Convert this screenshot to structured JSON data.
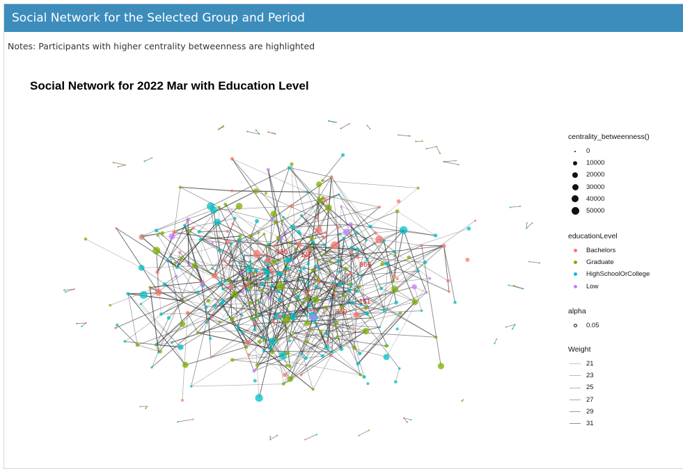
{
  "header": {
    "title": "Social Network for the Selected Group and Period"
  },
  "notes": "Notes: Participants with higher centrality betweenness are highlighted",
  "plot": {
    "title": "Social Network for 2022 Mar with Education Level"
  },
  "highlighted_labels": [
    "350",
    "145",
    "566",
    "161",
    "850"
  ],
  "legend": {
    "size": {
      "title": "centrality_betweenness()",
      "items": [
        "0",
        "10000",
        "20000",
        "30000",
        "40000",
        "50000"
      ]
    },
    "education": {
      "title": "educationLevel",
      "items": [
        {
          "label": "Bachelors",
          "color": "#F8766D"
        },
        {
          "label": "Graduate",
          "color": "#7CAE00"
        },
        {
          "label": "HighSchoolOrCollege",
          "color": "#00BFC4"
        },
        {
          "label": "Low",
          "color": "#C77CFF"
        }
      ]
    },
    "alpha": {
      "title": "alpha",
      "items": [
        "0.05"
      ]
    },
    "weight": {
      "title": "Weight",
      "items": [
        "21",
        "23",
        "25",
        "27",
        "29",
        "31"
      ]
    }
  },
  "colors": {
    "header": "#3c8dbc",
    "edge": "#333333",
    "label": "#e0201b"
  }
}
